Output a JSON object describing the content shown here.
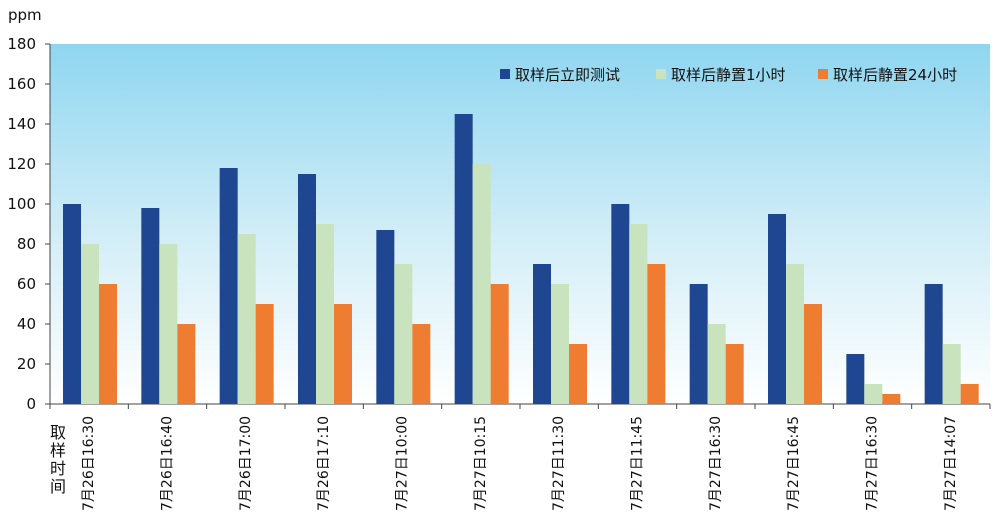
{
  "chart_data": {
    "type": "bar",
    "title": "",
    "ylabel": "ppm",
    "xlabel": "取样时间",
    "ylim": [
      0,
      180
    ],
    "yticks": [
      0,
      20,
      40,
      60,
      80,
      100,
      120,
      140,
      160,
      180
    ],
    "grid": false,
    "legend_position": "top-right",
    "background": "light blue gradient",
    "categories": [
      "7月26日16:30",
      "7月26日16:40",
      "7月26日17:00",
      "7月26日17:10",
      "7月27日10:00",
      "7月27日10:15",
      "7月27日11:30",
      "7月27日11:45",
      "7月27日16:30",
      "7月27日16:45",
      "7月27日16:30",
      "7月27日14:07"
    ],
    "series": [
      {
        "name": "取样后立即测试",
        "color": "#1f4690",
        "values": [
          100,
          98,
          118,
          115,
          87,
          145,
          70,
          100,
          60,
          95,
          25,
          60
        ]
      },
      {
        "name": "取样后静置1小时",
        "color": "#c8e3bd",
        "values": [
          80,
          80,
          85,
          90,
          70,
          120,
          60,
          90,
          40,
          70,
          10,
          30
        ]
      },
      {
        "name": "取样后静置24小时",
        "color": "#ee7d31",
        "values": [
          60,
          40,
          50,
          50,
          40,
          60,
          30,
          70,
          30,
          50,
          5,
          10
        ]
      }
    ]
  }
}
